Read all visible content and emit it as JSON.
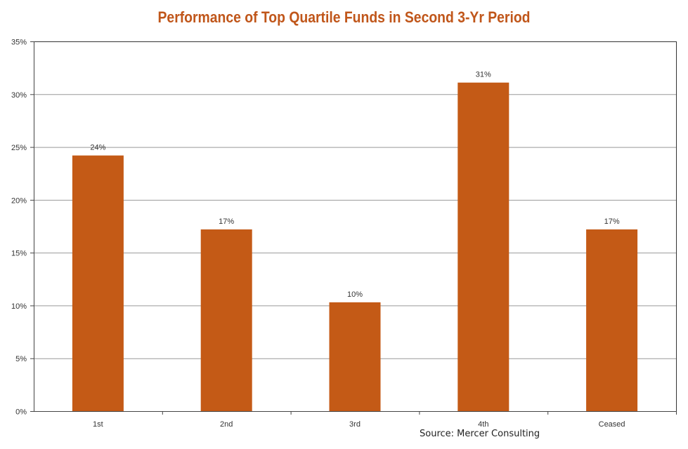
{
  "chart_data": {
    "type": "bar",
    "title": "Performance of Top Quartile Funds in Second 3-Yr Period",
    "categories": [
      "1st",
      "2nd",
      "3rd",
      "4th",
      "Ceased"
    ],
    "values": [
      24.2,
      17.2,
      10.3,
      31.1,
      17.2
    ],
    "data_labels": [
      "24%",
      "17%",
      "10%",
      "31%",
      "17%"
    ],
    "xlabel": "",
    "ylabel": "",
    "ylim": [
      0,
      35
    ],
    "yticks": [
      0,
      5,
      10,
      15,
      20,
      25,
      30,
      35
    ],
    "ytick_labels": [
      "0%",
      "5%",
      "10%",
      "15%",
      "20%",
      "25%",
      "30%",
      "35%"
    ],
    "grid": true,
    "bar_color": "#c45a16",
    "title_color": "#c0561a",
    "source": "Source: Mercer Consulting"
  }
}
